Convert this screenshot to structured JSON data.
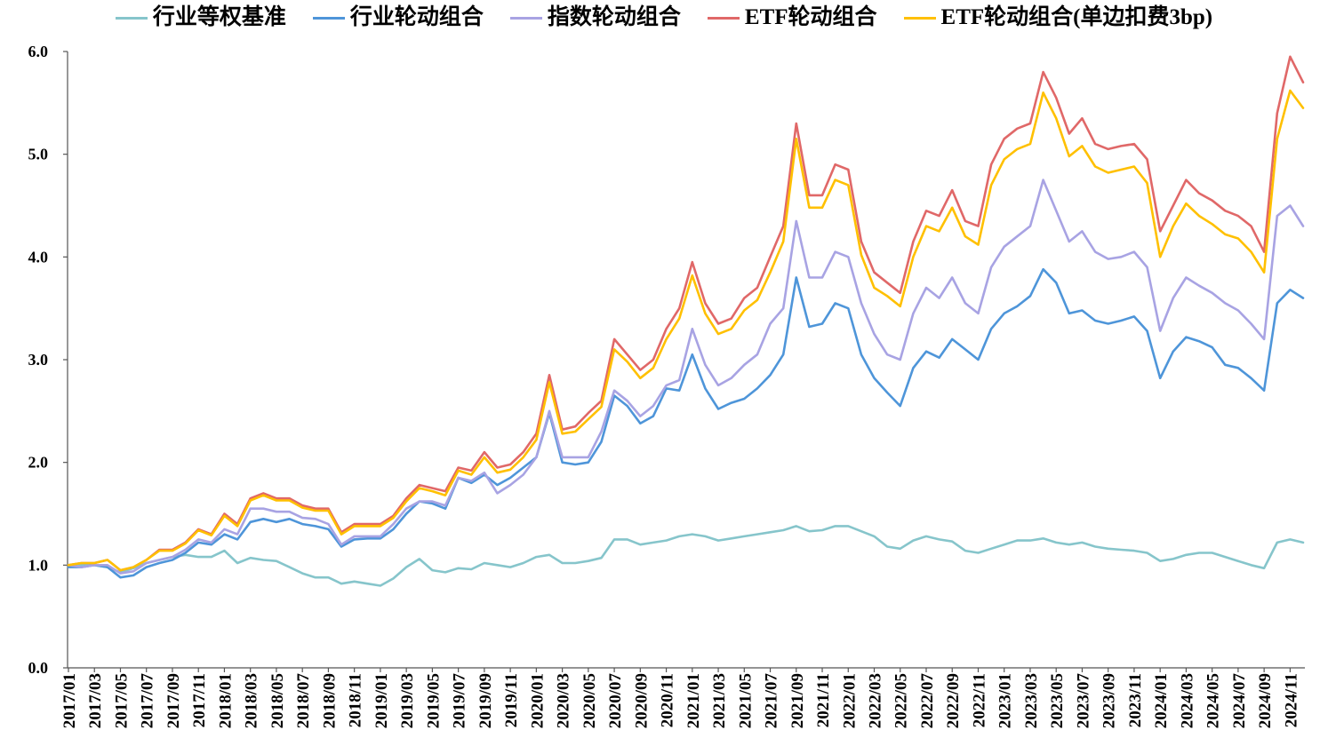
{
  "chart_data": {
    "type": "line",
    "legend": "top",
    "grid": false,
    "ylim": [
      0,
      6
    ],
    "y_tick_labels": [
      "0.0",
      "1.0",
      "2.0",
      "3.0",
      "4.0",
      "5.0",
      "6.0"
    ],
    "x_tick_labels": [
      "2017/01",
      "2017/03",
      "2017/05",
      "2017/07",
      "2017/09",
      "2017/11",
      "2018/01",
      "2018/03",
      "2018/05",
      "2018/07",
      "2018/09",
      "2018/11",
      "2019/01",
      "2019/03",
      "2019/05",
      "2019/07",
      "2019/09",
      "2019/11",
      "2020/01",
      "2020/03",
      "2020/05",
      "2020/07",
      "2020/09",
      "2020/11",
      "2021/01",
      "2021/03",
      "2021/05",
      "2021/07",
      "2021/09",
      "2021/11",
      "2022/01",
      "2022/03",
      "2022/05",
      "2022/07",
      "2022/09",
      "2022/11",
      "2023/01",
      "2023/03",
      "2023/05",
      "2023/07",
      "2023/09",
      "2023/11",
      "2024/01",
      "2024/03",
      "2024/05",
      "2024/07",
      "2024/09",
      "2024/11"
    ],
    "x": [
      "2017/01",
      "2017/02",
      "2017/03",
      "2017/04",
      "2017/05",
      "2017/06",
      "2017/07",
      "2017/08",
      "2017/09",
      "2017/10",
      "2017/11",
      "2017/12",
      "2018/01",
      "2018/02",
      "2018/03",
      "2018/04",
      "2018/05",
      "2018/06",
      "2018/07",
      "2018/08",
      "2018/09",
      "2018/10",
      "2018/11",
      "2018/12",
      "2019/01",
      "2019/02",
      "2019/03",
      "2019/04",
      "2019/05",
      "2019/06",
      "2019/07",
      "2019/08",
      "2019/09",
      "2019/10",
      "2019/11",
      "2019/12",
      "2020/01",
      "2020/02",
      "2020/03",
      "2020/04",
      "2020/05",
      "2020/06",
      "2020/07",
      "2020/08",
      "2020/09",
      "2020/10",
      "2020/11",
      "2020/12",
      "2021/01",
      "2021/02",
      "2021/03",
      "2021/04",
      "2021/05",
      "2021/06",
      "2021/07",
      "2021/08",
      "2021/09",
      "2021/10",
      "2021/11",
      "2021/12",
      "2022/01",
      "2022/02",
      "2022/03",
      "2022/04",
      "2022/05",
      "2022/06",
      "2022/07",
      "2022/08",
      "2022/09",
      "2022/10",
      "2022/11",
      "2022/12",
      "2023/01",
      "2023/02",
      "2023/03",
      "2023/04",
      "2023/05",
      "2023/06",
      "2023/07",
      "2023/08",
      "2023/09",
      "2023/10",
      "2023/11",
      "2023/12",
      "2024/01",
      "2024/02",
      "2024/03",
      "2024/04",
      "2024/05",
      "2024/06",
      "2024/07",
      "2024/08",
      "2024/09",
      "2024/10",
      "2024/11",
      "2024/12"
    ],
    "series": [
      {
        "name": "行业等权基准",
        "color": "#86C5CB",
        "values": [
          1.0,
          1.0,
          1.0,
          0.98,
          0.93,
          0.97,
          1.02,
          1.05,
          1.08,
          1.1,
          1.08,
          1.08,
          1.14,
          1.02,
          1.07,
          1.05,
          1.04,
          0.98,
          0.92,
          0.88,
          0.88,
          0.82,
          0.84,
          0.82,
          0.8,
          0.87,
          0.98,
          1.06,
          0.95,
          0.93,
          0.97,
          0.96,
          1.02,
          1.0,
          0.98,
          1.02,
          1.08,
          1.1,
          1.02,
          1.02,
          1.04,
          1.07,
          1.25,
          1.25,
          1.2,
          1.22,
          1.24,
          1.28,
          1.3,
          1.28,
          1.24,
          1.26,
          1.28,
          1.3,
          1.32,
          1.34,
          1.38,
          1.33,
          1.34,
          1.38,
          1.38,
          1.33,
          1.28,
          1.18,
          1.16,
          1.24,
          1.28,
          1.25,
          1.23,
          1.14,
          1.12,
          1.16,
          1.2,
          1.24,
          1.24,
          1.26,
          1.22,
          1.2,
          1.22,
          1.18,
          1.16,
          1.15,
          1.14,
          1.12,
          1.04,
          1.06,
          1.1,
          1.12,
          1.12,
          1.08,
          1.04,
          1.0,
          0.97,
          1.22,
          1.25,
          1.22
        ]
      },
      {
        "name": "行业轮动组合",
        "color": "#4E95D9",
        "values": [
          0.98,
          0.98,
          1.0,
          0.98,
          0.88,
          0.9,
          0.98,
          1.02,
          1.05,
          1.12,
          1.22,
          1.2,
          1.3,
          1.25,
          1.42,
          1.45,
          1.42,
          1.45,
          1.4,
          1.38,
          1.35,
          1.18,
          1.25,
          1.26,
          1.26,
          1.35,
          1.5,
          1.62,
          1.6,
          1.55,
          1.85,
          1.8,
          1.88,
          1.78,
          1.85,
          1.95,
          2.05,
          2.48,
          2.0,
          1.98,
          2.0,
          2.2,
          2.65,
          2.55,
          2.38,
          2.45,
          2.72,
          2.7,
          3.05,
          2.72,
          2.52,
          2.58,
          2.62,
          2.72,
          2.85,
          3.05,
          3.8,
          3.32,
          3.35,
          3.55,
          3.5,
          3.05,
          2.82,
          2.68,
          2.55,
          2.92,
          3.08,
          3.02,
          3.2,
          3.1,
          3.0,
          3.3,
          3.45,
          3.52,
          3.62,
          3.88,
          3.75,
          3.45,
          3.48,
          3.38,
          3.35,
          3.38,
          3.42,
          3.28,
          2.82,
          3.08,
          3.22,
          3.18,
          3.12,
          2.95,
          2.92,
          2.82,
          2.7,
          3.55,
          3.68,
          3.6
        ]
      },
      {
        "name": "指数轮动组合",
        "color": "#A8A3E3",
        "values": [
          1.0,
          0.98,
          1.0,
          1.0,
          0.92,
          0.94,
          1.02,
          1.05,
          1.08,
          1.15,
          1.25,
          1.22,
          1.35,
          1.3,
          1.55,
          1.55,
          1.52,
          1.52,
          1.46,
          1.45,
          1.4,
          1.2,
          1.28,
          1.28,
          1.28,
          1.4,
          1.55,
          1.62,
          1.62,
          1.58,
          1.85,
          1.82,
          1.9,
          1.7,
          1.78,
          1.88,
          2.05,
          2.5,
          2.05,
          2.05,
          2.05,
          2.3,
          2.7,
          2.6,
          2.45,
          2.55,
          2.75,
          2.8,
          3.3,
          2.95,
          2.75,
          2.82,
          2.95,
          3.05,
          3.35,
          3.5,
          4.35,
          3.8,
          3.8,
          4.05,
          4.0,
          3.55,
          3.25,
          3.05,
          3.0,
          3.45,
          3.7,
          3.6,
          3.8,
          3.55,
          3.45,
          3.9,
          4.1,
          4.2,
          4.3,
          4.75,
          4.45,
          4.15,
          4.25,
          4.05,
          3.98,
          4.0,
          4.05,
          3.9,
          3.28,
          3.6,
          3.8,
          3.72,
          3.65,
          3.55,
          3.48,
          3.35,
          3.2,
          4.4,
          4.5,
          4.3
        ]
      },
      {
        "name": "ETF轮动组合",
        "color": "#E06868",
        "values": [
          1.0,
          1.02,
          1.02,
          1.05,
          0.95,
          0.98,
          1.05,
          1.15,
          1.15,
          1.22,
          1.35,
          1.3,
          1.5,
          1.4,
          1.65,
          1.7,
          1.65,
          1.65,
          1.58,
          1.55,
          1.55,
          1.32,
          1.4,
          1.4,
          1.4,
          1.48,
          1.65,
          1.78,
          1.75,
          1.72,
          1.95,
          1.92,
          2.1,
          1.95,
          1.98,
          2.1,
          2.28,
          2.85,
          2.32,
          2.35,
          2.48,
          2.6,
          3.2,
          3.05,
          2.9,
          3.0,
          3.3,
          3.5,
          3.95,
          3.55,
          3.35,
          3.4,
          3.6,
          3.7,
          4.0,
          4.3,
          5.3,
          4.6,
          4.6,
          4.9,
          4.85,
          4.15,
          3.85,
          3.75,
          3.65,
          4.15,
          4.45,
          4.4,
          4.65,
          4.35,
          4.3,
          4.9,
          5.15,
          5.25,
          5.3,
          5.8,
          5.55,
          5.2,
          5.35,
          5.1,
          5.05,
          5.08,
          5.1,
          4.95,
          4.25,
          4.5,
          4.75,
          4.62,
          4.55,
          4.45,
          4.4,
          4.3,
          4.05,
          5.4,
          5.95,
          5.7
        ]
      },
      {
        "name": "ETF轮动组合(单边扣费3bp)",
        "color": "#FFC000",
        "values": [
          1.0,
          1.02,
          1.02,
          1.05,
          0.95,
          0.98,
          1.05,
          1.14,
          1.14,
          1.21,
          1.34,
          1.29,
          1.48,
          1.38,
          1.63,
          1.68,
          1.63,
          1.63,
          1.56,
          1.53,
          1.53,
          1.3,
          1.38,
          1.38,
          1.38,
          1.46,
          1.62,
          1.75,
          1.72,
          1.68,
          1.92,
          1.88,
          2.05,
          1.9,
          1.93,
          2.05,
          2.22,
          2.78,
          2.28,
          2.3,
          2.42,
          2.54,
          3.1,
          2.98,
          2.82,
          2.92,
          3.2,
          3.4,
          3.82,
          3.45,
          3.25,
          3.3,
          3.48,
          3.58,
          3.85,
          4.15,
          5.15,
          4.48,
          4.48,
          4.75,
          4.7,
          4.02,
          3.7,
          3.62,
          3.52,
          4.0,
          4.3,
          4.25,
          4.48,
          4.2,
          4.12,
          4.7,
          4.95,
          5.05,
          5.1,
          5.6,
          5.35,
          4.98,
          5.08,
          4.88,
          4.82,
          4.85,
          4.88,
          4.72,
          4.0,
          4.3,
          4.52,
          4.4,
          4.32,
          4.22,
          4.18,
          4.05,
          3.85,
          5.15,
          5.62,
          5.45
        ]
      }
    ]
  }
}
